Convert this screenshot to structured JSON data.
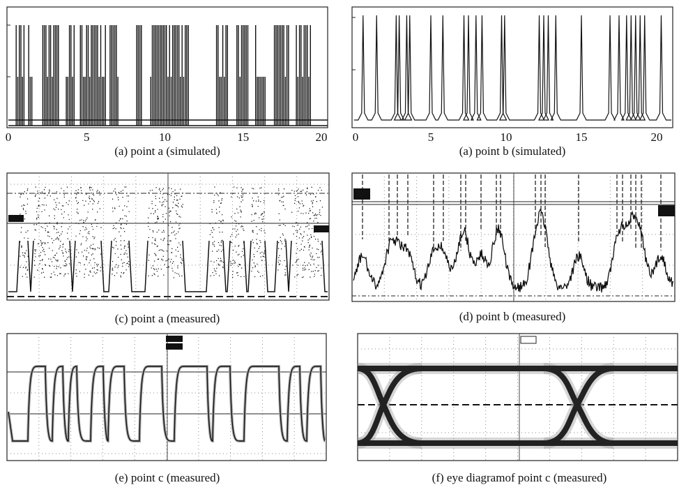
{
  "figure": {
    "panels": [
      {
        "caption": "(a) point a (simulated)",
        "xticks": [
          0,
          5,
          10,
          15,
          20
        ]
      },
      {
        "caption": "(a) point b (simulated)",
        "xticks": [
          0,
          5,
          10,
          15,
          20
        ]
      },
      {
        "caption": "(c) point a (measured)"
      },
      {
        "caption": "(d) point b (measured)"
      },
      {
        "caption": "(e) point c (measured)"
      },
      {
        "caption": "(f) eye diagramof point c (measured)"
      }
    ]
  }
}
